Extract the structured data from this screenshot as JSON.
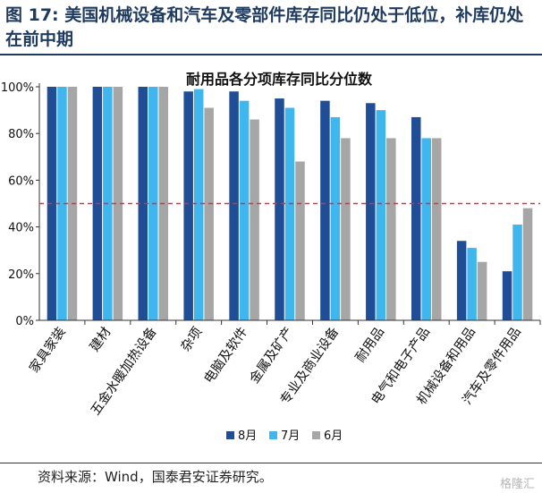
{
  "figure_title": "图 17: 美国机械设备和汽车及零部件库存同比仍处于低位，补库仍处在前中期",
  "source": "资料来源：Wind，国泰君安证券研究。",
  "watermark": "格隆汇",
  "chart_data": {
    "type": "bar",
    "title": "耐用品各分项库存同比分位数",
    "categories": [
      "家具家装",
      "建材",
      "五金水暖加热设备",
      "杂项",
      "电脑及软件",
      "金属及矿产",
      "专业及商业设备",
      "耐用品",
      "电气和电子产品",
      "机械设备和用品",
      "汽车及零件用品"
    ],
    "series": [
      {
        "name": "8月",
        "color": "#1f4e96",
        "values": [
          100,
          100,
          100,
          98,
          98,
          95,
          94,
          93,
          87,
          34,
          21
        ]
      },
      {
        "name": "7月",
        "color": "#3fb6ee",
        "values": [
          100,
          100,
          100,
          99,
          94,
          91,
          87,
          90,
          78,
          31,
          41
        ]
      },
      {
        "name": "6月",
        "color": "#a6a6a6",
        "values": [
          100,
          100,
          100,
          91,
          86,
          68,
          78,
          78,
          78,
          25,
          48
        ]
      }
    ],
    "yticks": [
      "0%",
      "20%",
      "40%",
      "60%",
      "80%",
      "100%"
    ],
    "ylim": [
      0,
      100
    ],
    "reference_line": {
      "value": 50,
      "color": "#e03030",
      "style": "dashed"
    },
    "legend_position": "bottom",
    "grid": false
  }
}
